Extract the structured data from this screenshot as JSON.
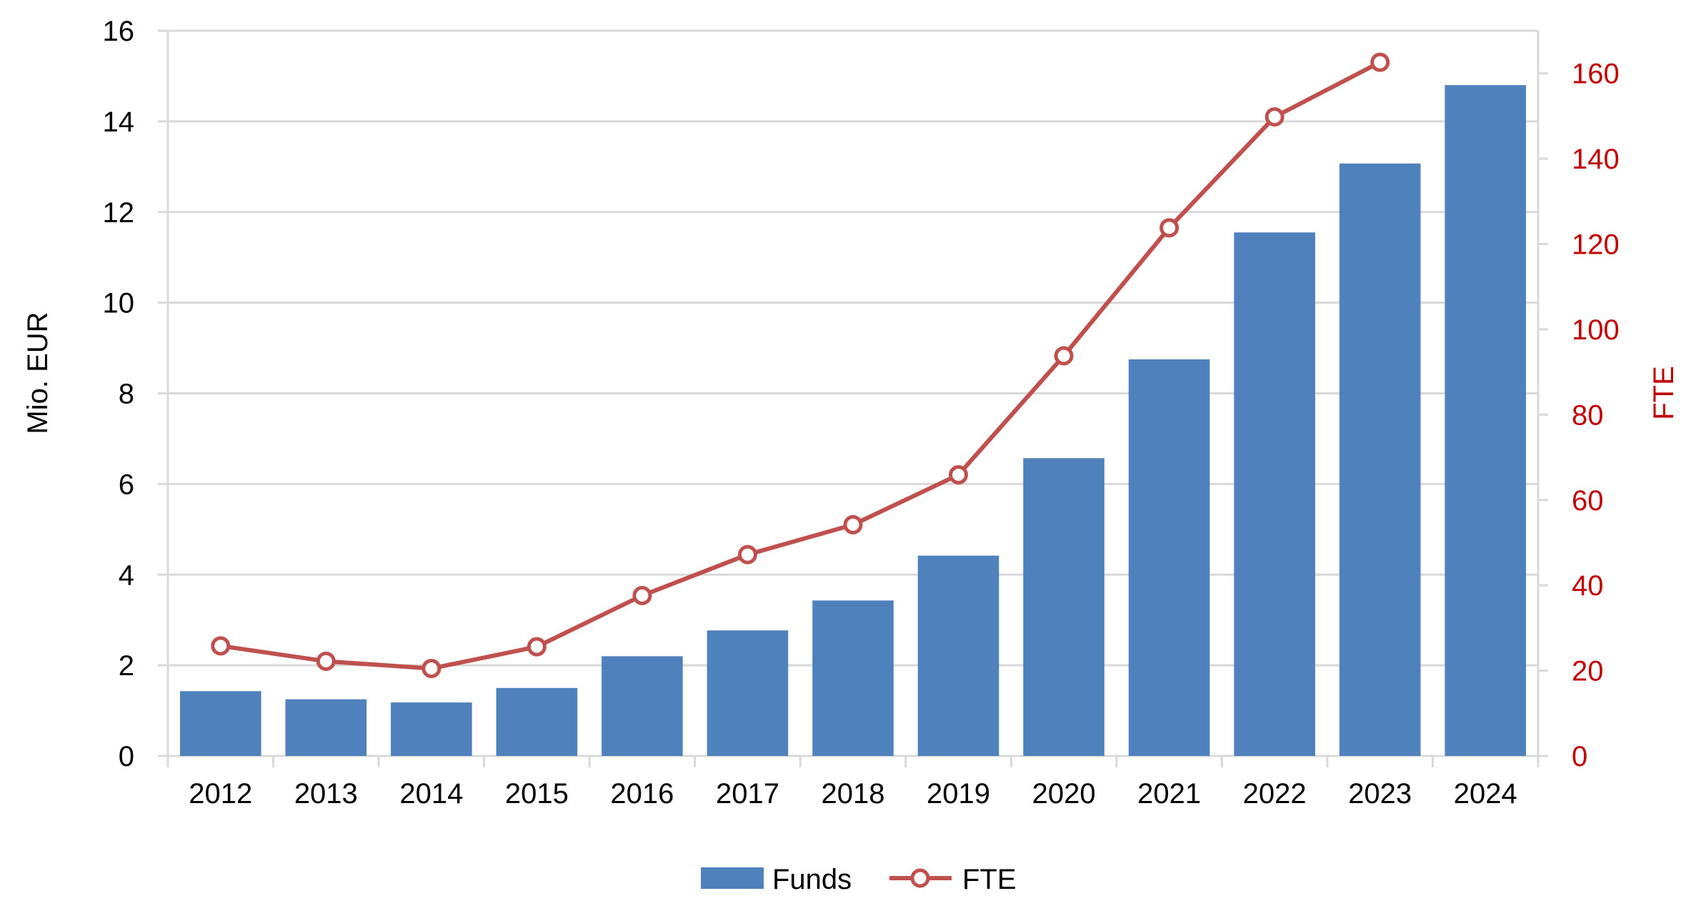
{
  "chart_data": {
    "type": "bar",
    "categories": [
      "2012",
      "2013",
      "2014",
      "2015",
      "2016",
      "2017",
      "2018",
      "2019",
      "2020",
      "2021",
      "2022",
      "2023",
      "2024"
    ],
    "series": [
      {
        "name": "Funds",
        "type": "bar",
        "axis": "left",
        "color": "#4F81BD",
        "values": [
          1.43,
          1.25,
          1.18,
          1.5,
          2.2,
          2.77,
          3.43,
          4.42,
          6.57,
          8.75,
          11.55,
          13.07,
          14.8
        ]
      },
      {
        "name": "FTE",
        "type": "line",
        "axis": "right",
        "color": "#C0504D",
        "marker": "open-circle",
        "values": [
          25.8,
          22.2,
          20.5,
          25.6,
          37.6,
          47.2,
          54.2,
          65.9,
          93.8,
          123.8,
          149.8,
          162.6,
          null
        ]
      }
    ],
    "y_left": {
      "label": "Mio. EUR",
      "ylim": [
        0,
        16
      ],
      "ticks": [
        "0",
        "2",
        "4",
        "6",
        "8",
        "10",
        "12",
        "14",
        "16"
      ]
    },
    "y_right": {
      "label": "FTE",
      "ylim": [
        0,
        170
      ],
      "ticks": [
        "0",
        "20",
        "40",
        "60",
        "80",
        "100",
        "120",
        "140",
        "160"
      ],
      "tick_values": [
        0,
        20,
        40,
        60,
        80,
        100,
        120,
        140,
        160
      ],
      "color": "#C00000"
    },
    "grid": true,
    "legend_position": "bottom",
    "title": ""
  }
}
